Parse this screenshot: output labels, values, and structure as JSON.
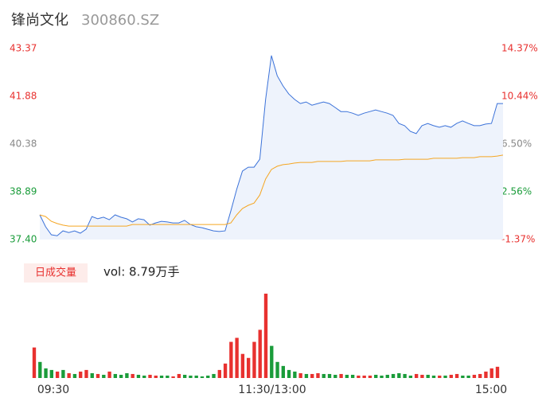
{
  "chart_data": [
    {
      "type": "line",
      "title": "锋尚文化",
      "subtitle": "300860.SZ",
      "ylim": [
        37.4,
        43.37
      ],
      "yticks": [
        {
          "value": 43.37,
          "label": "43.37"
        },
        {
          "value": 41.88,
          "label": "41.88"
        },
        {
          "value": 40.38,
          "label": "40.38"
        },
        {
          "value": 38.89,
          "label": "38.89"
        },
        {
          "value": 37.4,
          "label": "37.40"
        }
      ],
      "ytick_colors": [
        "#e8312f",
        "#e8312f",
        "#888888",
        "#1a9c3a",
        "#1a9c3a"
      ],
      "y2lim": [
        -1.37,
        14.37
      ],
      "y2ticks": [
        {
          "value": 14.37,
          "label": "14.37%"
        },
        {
          "value": 10.44,
          "label": "10.44%"
        },
        {
          "value": 6.5,
          "label": "6.50%"
        },
        {
          "value": 2.56,
          "label": "2.56%"
        },
        {
          "value": -1.37,
          "label": "-1.37%"
        }
      ],
      "y2tick_colors": [
        "#e8312f",
        "#e8312f",
        "#888888",
        "#1a9c3a",
        "#e8312f"
      ],
      "series": [
        {
          "color": "#3b72d9",
          "area_color": "#eef3fc",
          "values": [
            38.17,
            37.8,
            37.55,
            37.52,
            37.67,
            37.62,
            37.67,
            37.6,
            37.72,
            38.12,
            38.05,
            38.1,
            38.02,
            38.17,
            38.1,
            38.05,
            37.95,
            38.05,
            38.02,
            37.85,
            37.92,
            37.97,
            37.95,
            37.92,
            37.92,
            38.0,
            37.87,
            37.8,
            37.77,
            37.72,
            37.67,
            37.65,
            37.67,
            38.3,
            38.97,
            39.54,
            39.66,
            39.66,
            39.91,
            41.78,
            43.15,
            42.52,
            42.2,
            41.95,
            41.78,
            41.65,
            41.7,
            41.6,
            41.65,
            41.7,
            41.65,
            41.53,
            41.4,
            41.4,
            41.35,
            41.28,
            41.35,
            41.4,
            41.45,
            41.4,
            41.35,
            41.28,
            41.03,
            40.96,
            40.78,
            40.71,
            40.96,
            41.03,
            40.96,
            40.91,
            40.96,
            40.91,
            41.03,
            41.11,
            41.03,
            40.96,
            40.96,
            41.01,
            41.03,
            41.65,
            41.65
          ]
        },
        {
          "color": "#f5a623",
          "values": [
            38.17,
            38.12,
            37.97,
            37.9,
            37.85,
            37.82,
            37.82,
            37.82,
            37.82,
            37.82,
            37.82,
            37.82,
            37.82,
            37.82,
            37.82,
            37.82,
            37.87,
            37.87,
            37.87,
            37.87,
            37.87,
            37.87,
            37.87,
            37.87,
            37.87,
            37.87,
            37.87,
            37.87,
            37.87,
            37.87,
            37.87,
            37.87,
            37.87,
            37.92,
            38.17,
            38.37,
            38.47,
            38.54,
            38.79,
            39.29,
            39.59,
            39.69,
            39.74,
            39.76,
            39.79,
            39.81,
            39.81,
            39.81,
            39.84,
            39.84,
            39.84,
            39.84,
            39.84,
            39.86,
            39.86,
            39.86,
            39.86,
            39.86,
            39.89,
            39.89,
            39.89,
            39.89,
            39.89,
            39.91,
            39.91,
            39.91,
            39.91,
            39.91,
            39.94,
            39.94,
            39.94,
            39.94,
            39.94,
            39.96,
            39.96,
            39.96,
            39.99,
            39.99,
            39.99,
            40.01,
            40.04
          ]
        }
      ]
    },
    {
      "type": "volume",
      "legend": "日成交量",
      "label": "vol: 8.79万手",
      "up_color": "#e8312f",
      "down_color": "#1a9c3a",
      "xticks": [
        {
          "value": 0,
          "label": "09:30"
        },
        {
          "value": 40,
          "label": "11:30/13:00"
        },
        {
          "value": 80,
          "label": "15:00"
        }
      ],
      "values": [
        38,
        20,
        12,
        10,
        8,
        10,
        6,
        5,
        8,
        10,
        6,
        5,
        4,
        8,
        5,
        4,
        6,
        5,
        4,
        3,
        4,
        3,
        3,
        3,
        2,
        5,
        4,
        3,
        3,
        2,
        3,
        5,
        10,
        18,
        45,
        50,
        30,
        25,
        45,
        60,
        105,
        40,
        20,
        15,
        10,
        8,
        6,
        5,
        5,
        6,
        5,
        5,
        4,
        5,
        4,
        4,
        3,
        3,
        3,
        4,
        3,
        4,
        5,
        6,
        5,
        3,
        5,
        4,
        4,
        3,
        3,
        3,
        4,
        5,
        3,
        3,
        4,
        5,
        8,
        12,
        14
      ]
    }
  ]
}
